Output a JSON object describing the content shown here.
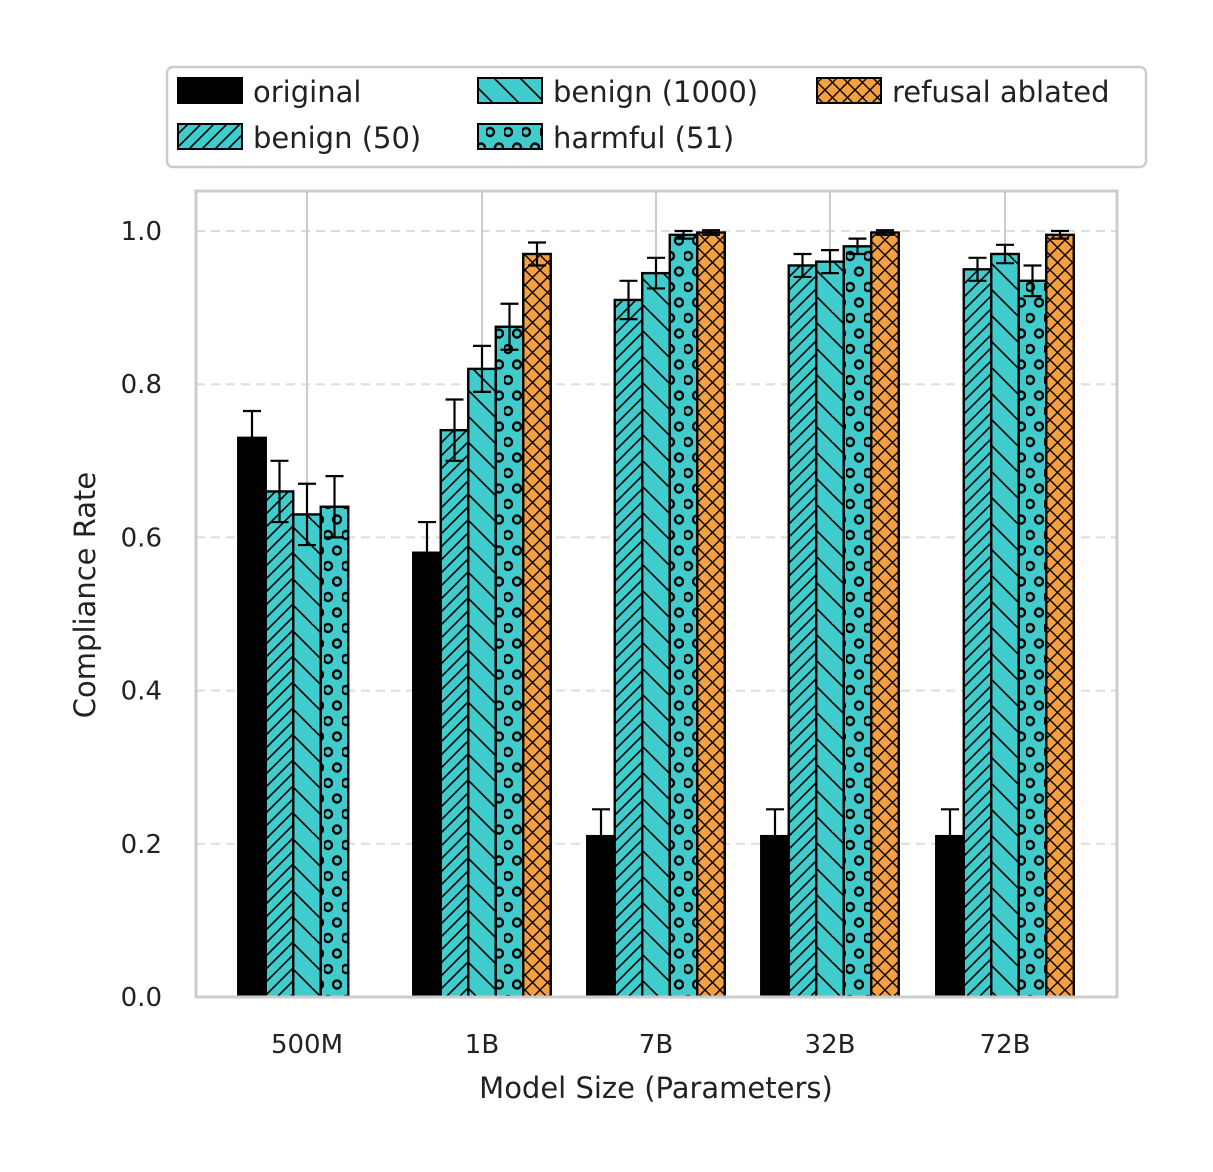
{
  "chart_data": {
    "type": "bar",
    "title": "",
    "xlabel": "Model Size (Parameters)",
    "ylabel": "Compliance Rate",
    "ylim": [
      0,
      1.05
    ],
    "yticks": [
      "0.0",
      "0.2",
      "0.4",
      "0.6",
      "0.8",
      "1.0"
    ],
    "categories": [
      "500M",
      "1B",
      "7B",
      "32B",
      "72B"
    ],
    "grid": true,
    "legend_position": "top",
    "series": [
      {
        "name": "original",
        "color": "#000000",
        "pattern": "solid",
        "values": [
          0.73,
          0.58,
          0.21,
          0.21,
          0.21
        ],
        "errors": [
          0.035,
          0.04,
          0.035,
          0.035,
          0.035
        ]
      },
      {
        "name": "benign (50)",
        "color": "#40cccc",
        "pattern": "diagonal",
        "values": [
          0.66,
          0.74,
          0.91,
          0.955,
          0.95
        ],
        "errors": [
          0.04,
          0.04,
          0.025,
          0.015,
          0.015
        ]
      },
      {
        "name": "benign (1000)",
        "color": "#40cccc",
        "pattern": "backslash",
        "values": [
          0.63,
          0.82,
          0.945,
          0.96,
          0.97
        ],
        "errors": [
          0.04,
          0.03,
          0.02,
          0.015,
          0.012
        ]
      },
      {
        "name": "harmful (51)",
        "color": "#40cccc",
        "pattern": "circles",
        "values": [
          0.64,
          0.875,
          0.995,
          0.98,
          0.935
        ],
        "errors": [
          0.04,
          0.03,
          0.005,
          0.01,
          0.02
        ]
      },
      {
        "name": "refusal ablated",
        "color": "#f5a040",
        "pattern": "cross",
        "values": [
          null,
          0.97,
          0.998,
          0.998,
          0.995
        ],
        "errors": [
          null,
          0.015,
          0.003,
          0.003,
          0.005
        ]
      }
    ]
  }
}
